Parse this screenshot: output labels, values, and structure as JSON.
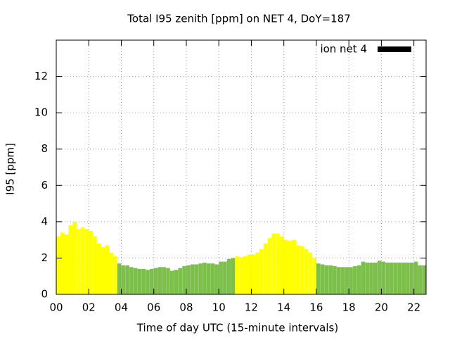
{
  "chart_data": {
    "type": "bar",
    "title": "Total I95 zenith [ppm] on NET 4, DoY=187",
    "x_label": "Time of day UTC (15-minute intervals)",
    "y_label": "I95 [ppm]",
    "legend": {
      "label": "ion net 4",
      "color": "#000000",
      "position": "top-right"
    },
    "x": [
      0.125,
      0.375,
      0.625,
      0.875,
      1.125,
      1.375,
      1.625,
      1.875,
      2.125,
      2.375,
      2.625,
      2.875,
      3.125,
      3.375,
      3.625,
      3.875,
      4.125,
      4.375,
      4.625,
      4.875,
      5.125,
      5.375,
      5.625,
      5.875,
      6.125,
      6.375,
      6.625,
      6.875,
      7.125,
      7.375,
      7.625,
      7.875,
      8.125,
      8.375,
      8.625,
      8.875,
      9.125,
      9.375,
      9.625,
      9.875,
      10.125,
      10.375,
      10.625,
      10.875,
      11.125,
      11.375,
      11.625,
      11.875,
      12.125,
      12.375,
      12.625,
      12.875,
      13.125,
      13.375,
      13.625,
      13.875,
      14.125,
      14.375,
      14.625,
      14.875,
      15.125,
      15.375,
      15.625,
      15.875,
      16.125,
      16.375,
      16.625,
      16.875,
      17.125,
      17.375,
      17.625,
      17.875,
      18.125,
      18.375,
      18.625,
      18.875,
      19.125,
      19.375,
      19.625,
      19.875,
      20.125,
      20.375,
      20.625,
      20.875,
      21.125,
      21.375,
      21.625,
      21.875,
      22.125,
      22.375,
      22.625
    ],
    "values": [
      3.2,
      3.4,
      3.3,
      3.8,
      4.0,
      3.6,
      3.7,
      3.6,
      3.5,
      3.2,
      2.8,
      2.6,
      2.7,
      2.3,
      2.1,
      1.7,
      1.6,
      1.6,
      1.5,
      1.45,
      1.4,
      1.4,
      1.35,
      1.4,
      1.45,
      1.5,
      1.5,
      1.45,
      1.3,
      1.35,
      1.45,
      1.55,
      1.6,
      1.65,
      1.65,
      1.7,
      1.75,
      1.7,
      1.7,
      1.65,
      1.8,
      1.8,
      1.95,
      2.0,
      2.1,
      2.05,
      2.1,
      2.2,
      2.2,
      2.3,
      2.5,
      2.8,
      3.1,
      3.35,
      3.35,
      3.2,
      3.0,
      2.95,
      3.0,
      2.7,
      2.65,
      2.5,
      2.3,
      2.0,
      1.7,
      1.65,
      1.6,
      1.6,
      1.55,
      1.5,
      1.5,
      1.5,
      1.5,
      1.55,
      1.6,
      1.8,
      1.75,
      1.75,
      1.75,
      1.85,
      1.8,
      1.75,
      1.75,
      1.75,
      1.75,
      1.75,
      1.75,
      1.75,
      1.8,
      1.6,
      1.6
    ],
    "colors": [
      "#ffff00",
      "#ffff00",
      "#ffff00",
      "#ffff00",
      "#ffff00",
      "#ffff00",
      "#ffff00",
      "#ffff00",
      "#ffff00",
      "#ffff00",
      "#ffff00",
      "#ffff00",
      "#ffff00",
      "#ffff00",
      "#ffff00",
      "#7cbf4a",
      "#7cbf4a",
      "#7cbf4a",
      "#7cbf4a",
      "#7cbf4a",
      "#7cbf4a",
      "#7cbf4a",
      "#7cbf4a",
      "#7cbf4a",
      "#7cbf4a",
      "#7cbf4a",
      "#7cbf4a",
      "#7cbf4a",
      "#7cbf4a",
      "#7cbf4a",
      "#7cbf4a",
      "#7cbf4a",
      "#7cbf4a",
      "#7cbf4a",
      "#7cbf4a",
      "#7cbf4a",
      "#7cbf4a",
      "#7cbf4a",
      "#7cbf4a",
      "#7cbf4a",
      "#7cbf4a",
      "#7cbf4a",
      "#7cbf4a",
      "#7cbf4a",
      "#ffff00",
      "#ffff00",
      "#ffff00",
      "#ffff00",
      "#ffff00",
      "#ffff00",
      "#ffff00",
      "#ffff00",
      "#ffff00",
      "#ffff00",
      "#ffff00",
      "#ffff00",
      "#ffff00",
      "#ffff00",
      "#ffff00",
      "#ffff00",
      "#ffff00",
      "#ffff00",
      "#ffff00",
      "#ffff00",
      "#7cbf4a",
      "#7cbf4a",
      "#7cbf4a",
      "#7cbf4a",
      "#7cbf4a",
      "#7cbf4a",
      "#7cbf4a",
      "#7cbf4a",
      "#7cbf4a",
      "#7cbf4a",
      "#7cbf4a",
      "#7cbf4a",
      "#7cbf4a",
      "#7cbf4a",
      "#7cbf4a",
      "#7cbf4a",
      "#7cbf4a",
      "#7cbf4a",
      "#7cbf4a",
      "#7cbf4a",
      "#7cbf4a",
      "#7cbf4a",
      "#7cbf4a",
      "#7cbf4a",
      "#7cbf4a",
      "#7cbf4a",
      "#7cbf4a"
    ],
    "bar_width": 0.2,
    "xlim": [
      0,
      22.75
    ],
    "xticks": [
      {
        "value": 0,
        "label": "00"
      },
      {
        "value": 2,
        "label": "02"
      },
      {
        "value": 4,
        "label": "04"
      },
      {
        "value": 6,
        "label": "06"
      },
      {
        "value": 8,
        "label": "08"
      },
      {
        "value": 10,
        "label": "10"
      },
      {
        "value": 12,
        "label": "12"
      },
      {
        "value": 14,
        "label": "14"
      },
      {
        "value": 16,
        "label": "16"
      },
      {
        "value": 18,
        "label": "18"
      },
      {
        "value": 20,
        "label": "20"
      },
      {
        "value": 22,
        "label": "22"
      }
    ],
    "ylim": [
      0,
      14
    ],
    "yticks": [
      0,
      2,
      4,
      6,
      8,
      10,
      12
    ],
    "grid": true
  }
}
